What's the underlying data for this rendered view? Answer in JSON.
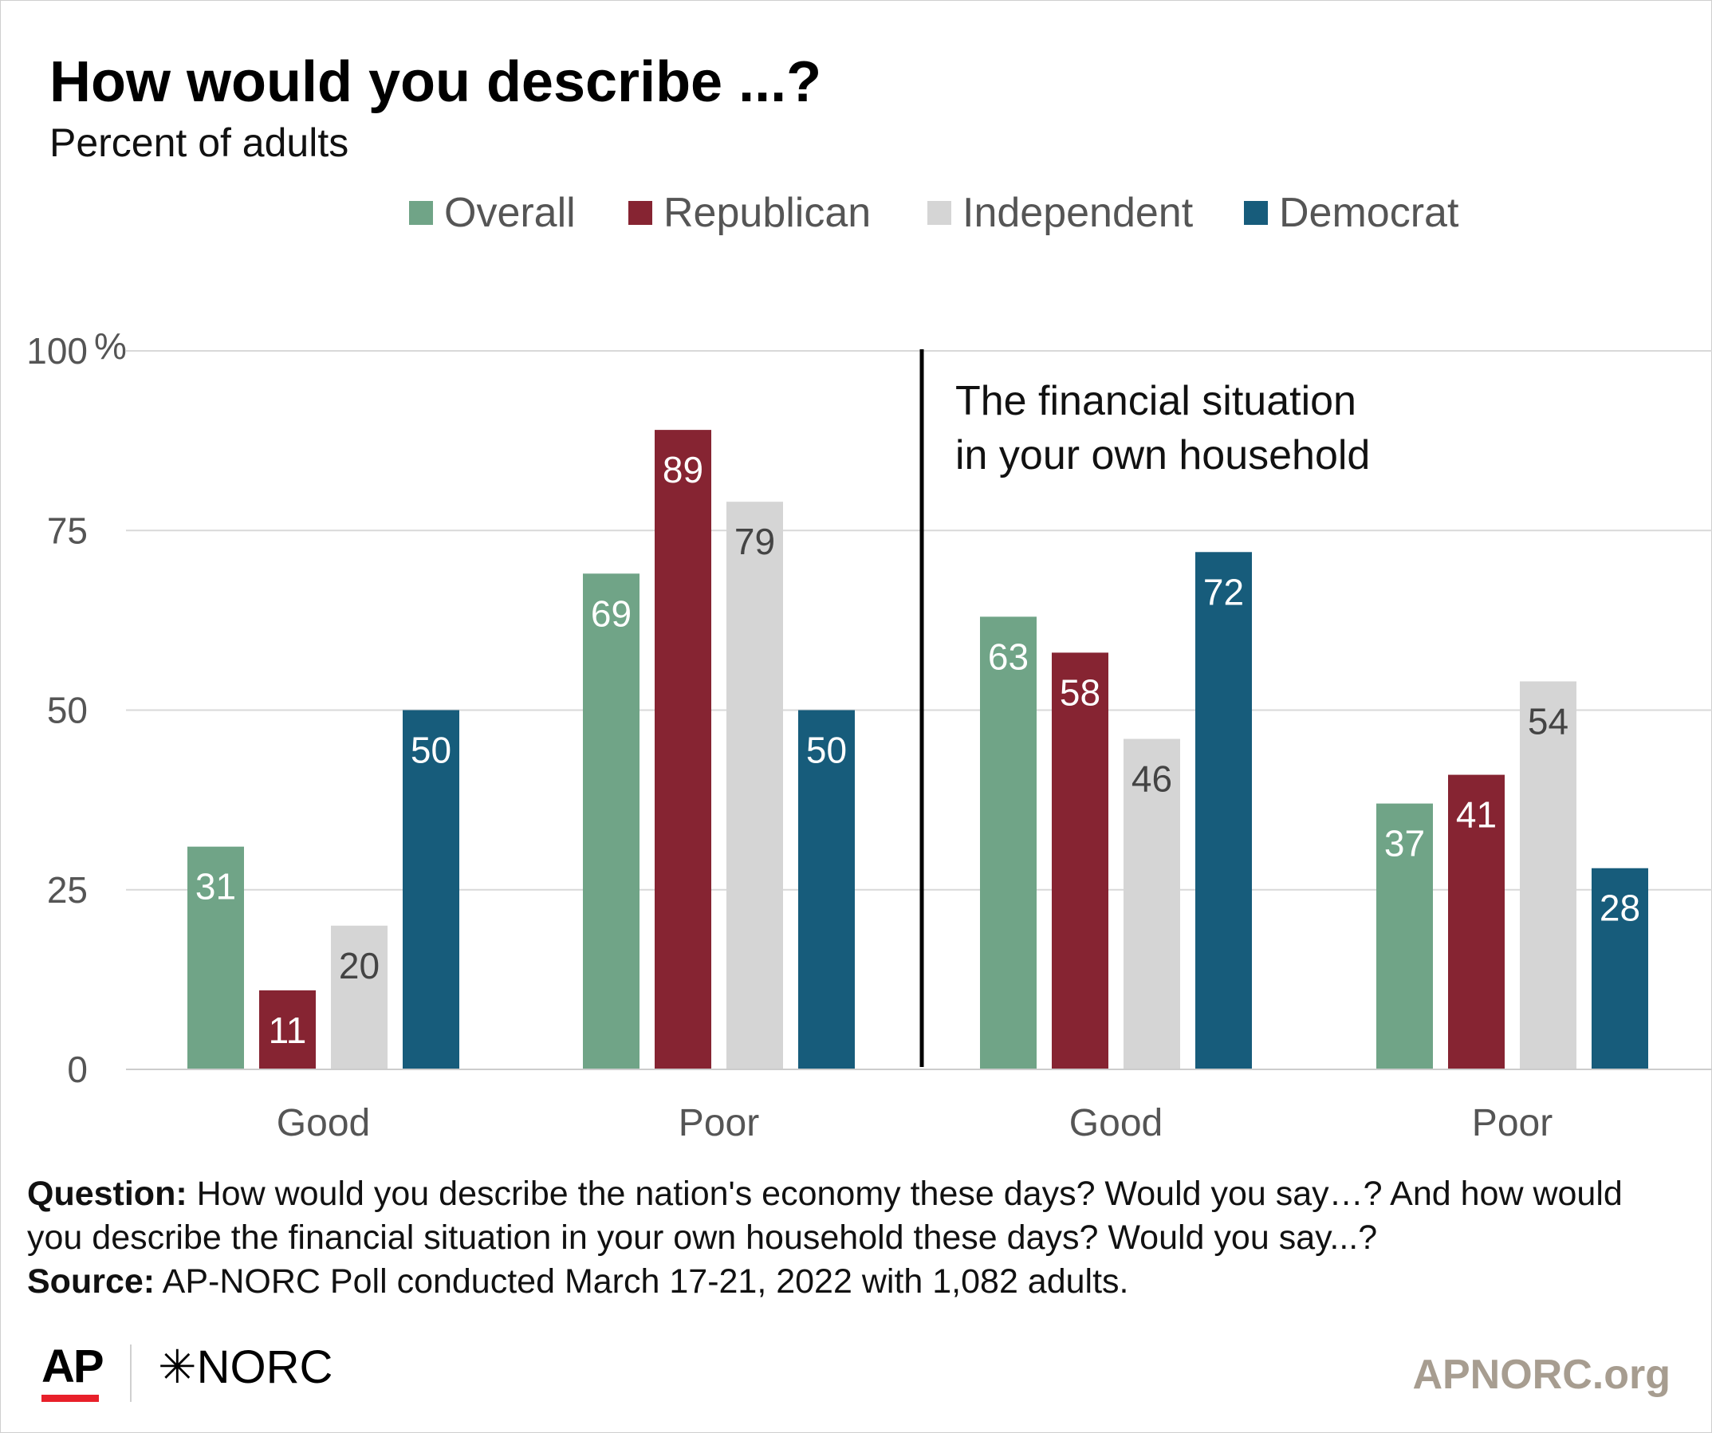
{
  "chart_data": {
    "type": "bar",
    "title": "How would you describe ...?",
    "subtitle": "Percent of adults",
    "ylim": [
      0,
      100
    ],
    "y_ticks": [
      {
        "value": 0,
        "label": "0"
      },
      {
        "value": 25,
        "label": "25"
      },
      {
        "value": 50,
        "label": "50"
      },
      {
        "value": 75,
        "label": "75"
      },
      {
        "value": 100,
        "label": "100"
      }
    ],
    "y_unit": "%",
    "grid": true,
    "legend_position": "top-center",
    "categories": [
      "Good",
      "Poor",
      "Good",
      "Poor"
    ],
    "panel_annotation": [
      "The financial situation",
      "in your own household"
    ],
    "series": [
      {
        "name": "Overall",
        "color": "#70a487",
        "label_color": "#ffffff",
        "values": [
          31,
          69,
          63,
          37
        ]
      },
      {
        "name": "Republican",
        "color": "#862432",
        "label_color": "#ffffff",
        "values": [
          11,
          89,
          58,
          41
        ]
      },
      {
        "name": "Independent",
        "color": "#d5d5d5",
        "label_color": "#444444",
        "values": [
          20,
          79,
          46,
          54
        ]
      },
      {
        "name": "Democrat",
        "color": "#175c7b",
        "label_color": "#ffffff",
        "values": [
          50,
          50,
          72,
          28
        ]
      }
    ]
  },
  "footer": {
    "question_label": "Question:",
    "question_text": " How would you describe the nation's economy these days? Would you say…? And how would you describe the financial situation in your own household these days? Would you say...?",
    "source_label": "Source:",
    "source_text": " AP-NORC Poll conducted March 17-21, 2022 with 1,082 adults."
  },
  "branding": {
    "ap_logo": "AP",
    "norc_logo": "✳NORC",
    "website": "APNORC.org",
    "ap_accent_color": "#e8202a"
  }
}
